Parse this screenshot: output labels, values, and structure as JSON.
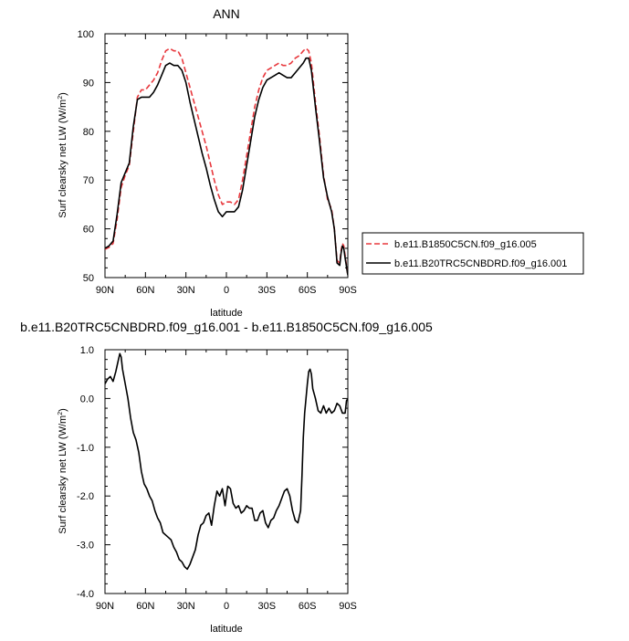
{
  "chart_data": [
    {
      "type": "line",
      "title": "ANN",
      "xlabel": "latitude",
      "ylabel_main": "Surf clearsky net LW (W/m",
      "ylabel_sup": "2",
      "ylabel_close": ")",
      "xlim": [
        90,
        -90
      ],
      "ylim": [
        50,
        100
      ],
      "xticks": [
        90,
        60,
        30,
        0,
        -30,
        -60,
        -90
      ],
      "xticklabels": [
        "90N",
        "60N",
        "30N",
        "0",
        "30S",
        "60S",
        "90S"
      ],
      "yticks": [
        50,
        60,
        70,
        80,
        90,
        100
      ],
      "yticklabels": [
        "50",
        "60",
        "70",
        "80",
        "90",
        "100"
      ],
      "legend": "right",
      "series": [
        {
          "name": "b.e11.B1850C5CN.f09_g16.005",
          "color": "#e8383d",
          "dash": "dashed",
          "points": [
            [
              90,
              55.8
            ],
            [
              87,
              56.2
            ],
            [
              84,
              57
            ],
            [
              81,
              62
            ],
            [
              78,
              68.5
            ],
            [
              75,
              71
            ],
            [
              72,
              73
            ],
            [
              69,
              80
            ],
            [
              66,
              87
            ],
            [
              63,
              88.5
            ],
            [
              60,
              88.5
            ],
            [
              57,
              89.5
            ],
            [
              54,
              90.5
            ],
            [
              51,
              92
            ],
            [
              48,
              94.5
            ],
            [
              45,
              96.5
            ],
            [
              42,
              97
            ],
            [
              39,
              96.5
            ],
            [
              36,
              96.5
            ],
            [
              33,
              95
            ],
            [
              30,
              92
            ],
            [
              27,
              89
            ],
            [
              24,
              86
            ],
            [
              21,
              83
            ],
            [
              18,
              80
            ],
            [
              15,
              77
            ],
            [
              12,
              73.5
            ],
            [
              9,
              70
            ],
            [
              6,
              67
            ],
            [
              3,
              65
            ],
            [
              0,
              65.5
            ],
            [
              -3,
              65.5
            ],
            [
              -6,
              65
            ],
            [
              -9,
              66
            ],
            [
              -12,
              70
            ],
            [
              -15,
              75
            ],
            [
              -18,
              80
            ],
            [
              -21,
              85
            ],
            [
              -24,
              88.5
            ],
            [
              -27,
              91
            ],
            [
              -30,
              92.5
            ],
            [
              -33,
              93
            ],
            [
              -36,
              93.5
            ],
            [
              -39,
              94
            ],
            [
              -42,
              93.5
            ],
            [
              -45,
              93.5
            ],
            [
              -48,
              94
            ],
            [
              -51,
              95
            ],
            [
              -54,
              95.5
            ],
            [
              -57,
              96.5
            ],
            [
              -59,
              97
            ],
            [
              -61,
              96.5
            ],
            [
              -63,
              94
            ],
            [
              -66,
              86
            ],
            [
              -69,
              79
            ],
            [
              -72,
              71
            ],
            [
              -75,
              66
            ],
            [
              -78,
              64
            ],
            [
              -80,
              60
            ],
            [
              -82,
              53.5
            ],
            [
              -84,
              53
            ],
            [
              -85,
              55.5
            ],
            [
              -86,
              57
            ],
            [
              -87,
              56.5
            ],
            [
              -88,
              54.5
            ],
            [
              -90,
              50.5
            ]
          ]
        },
        {
          "name": "b.e11.B20TRC5CNBDRD.f09_g16.001",
          "color": "#000000",
          "dash": "solid",
          "points": [
            [
              90,
              56
            ],
            [
              87,
              56.5
            ],
            [
              84,
              57.5
            ],
            [
              81,
              63
            ],
            [
              78,
              69.5
            ],
            [
              75,
              71.5
            ],
            [
              72,
              73.5
            ],
            [
              69,
              81
            ],
            [
              66,
              86.5
            ],
            [
              63,
              87
            ],
            [
              60,
              87
            ],
            [
              57,
              87
            ],
            [
              54,
              88
            ],
            [
              51,
              89.5
            ],
            [
              48,
              91.5
            ],
            [
              45,
              93.5
            ],
            [
              42,
              94
            ],
            [
              39,
              93.5
            ],
            [
              36,
              93.5
            ],
            [
              33,
              92.5
            ],
            [
              30,
              90
            ],
            [
              27,
              86
            ],
            [
              24,
              82.5
            ],
            [
              21,
              79
            ],
            [
              18,
              75.5
            ],
            [
              15,
              72.5
            ],
            [
              12,
              69
            ],
            [
              9,
              66
            ],
            [
              6,
              63.5
            ],
            [
              3,
              62.5
            ],
            [
              0,
              63.5
            ],
            [
              -3,
              63.5
            ],
            [
              -6,
              63.5
            ],
            [
              -9,
              64.5
            ],
            [
              -12,
              68
            ],
            [
              -15,
              73
            ],
            [
              -18,
              78
            ],
            [
              -21,
              83
            ],
            [
              -24,
              86.5
            ],
            [
              -27,
              89
            ],
            [
              -30,
              90.5
            ],
            [
              -33,
              91
            ],
            [
              -36,
              91.5
            ],
            [
              -39,
              92
            ],
            [
              -42,
              91.5
            ],
            [
              -45,
              91
            ],
            [
              -48,
              91
            ],
            [
              -51,
              92
            ],
            [
              -54,
              93
            ],
            [
              -57,
              94
            ],
            [
              -59,
              95
            ],
            [
              -61,
              95
            ],
            [
              -63,
              92.5
            ],
            [
              -66,
              85
            ],
            [
              -69,
              78
            ],
            [
              -72,
              70.5
            ],
            [
              -75,
              66.5
            ],
            [
              -78,
              63.5
            ],
            [
              -80,
              60
            ],
            [
              -82,
              53
            ],
            [
              -84,
              52.5
            ],
            [
              -85,
              55
            ],
            [
              -86,
              56.5
            ],
            [
              -87,
              56
            ],
            [
              -88,
              54
            ],
            [
              -90,
              50.5
            ]
          ]
        }
      ]
    },
    {
      "type": "line",
      "title": "b.e11.B20TRC5CNBDRD.f09_g16.001 - b.e11.B1850C5CN.f09_g16.005",
      "xlabel": "latitude",
      "ylabel_main": "Surf clearsky net LW (W/m",
      "ylabel_sup": "2",
      "ylabel_close": ")",
      "xlim": [
        90,
        -90
      ],
      "ylim": [
        -4.0,
        1.0
      ],
      "xticks": [
        90,
        60,
        30,
        0,
        -30,
        -60,
        -90
      ],
      "xticklabels": [
        "90N",
        "60N",
        "30N",
        "0",
        "30S",
        "60S",
        "90S"
      ],
      "yticks": [
        -4.0,
        -3.0,
        -2.0,
        -1.0,
        0.0,
        1.0
      ],
      "yticklabels": [
        "-4.0",
        "-3.0",
        "-2.0",
        "-1.0",
        "0.0",
        "1.0"
      ],
      "series": [
        {
          "color": "#000000",
          "dash": "solid",
          "points": [
            [
              90,
              0.3
            ],
            [
              88,
              0.4
            ],
            [
              86,
              0.45
            ],
            [
              84,
              0.35
            ],
            [
              82,
              0.55
            ],
            [
              80,
              0.8
            ],
            [
              79,
              0.92
            ],
            [
              78,
              0.85
            ],
            [
              77,
              0.6
            ],
            [
              75,
              0.3
            ],
            [
              73,
              0.0
            ],
            [
              71,
              -0.4
            ],
            [
              69,
              -0.7
            ],
            [
              67,
              -0.85
            ],
            [
              65,
              -1.1
            ],
            [
              63,
              -1.5
            ],
            [
              61,
              -1.75
            ],
            [
              59,
              -1.85
            ],
            [
              57,
              -2.0
            ],
            [
              55,
              -2.1
            ],
            [
              53,
              -2.3
            ],
            [
              51,
              -2.45
            ],
            [
              49,
              -2.55
            ],
            [
              47,
              -2.75
            ],
            [
              45,
              -2.8
            ],
            [
              43,
              -2.85
            ],
            [
              41,
              -2.9
            ],
            [
              39,
              -3.05
            ],
            [
              37,
              -3.15
            ],
            [
              35,
              -3.3
            ],
            [
              33,
              -3.35
            ],
            [
              31,
              -3.45
            ],
            [
              29,
              -3.5
            ],
            [
              27,
              -3.4
            ],
            [
              25,
              -3.25
            ],
            [
              23,
              -3.1
            ],
            [
              21,
              -2.8
            ],
            [
              19,
              -2.6
            ],
            [
              17,
              -2.55
            ],
            [
              15,
              -2.4
            ],
            [
              13,
              -2.35
            ],
            [
              11,
              -2.6
            ],
            [
              9,
              -2.2
            ],
            [
              7,
              -1.9
            ],
            [
              5,
              -2.0
            ],
            [
              3,
              -1.85
            ],
            [
              1,
              -2.2
            ],
            [
              -1,
              -1.8
            ],
            [
              -3,
              -1.85
            ],
            [
              -5,
              -2.15
            ],
            [
              -7,
              -2.25
            ],
            [
              -9,
              -2.2
            ],
            [
              -11,
              -2.35
            ],
            [
              -13,
              -2.3
            ],
            [
              -15,
              -2.2
            ],
            [
              -17,
              -2.25
            ],
            [
              -19,
              -2.25
            ],
            [
              -21,
              -2.5
            ],
            [
              -23,
              -2.5
            ],
            [
              -25,
              -2.35
            ],
            [
              -27,
              -2.3
            ],
            [
              -29,
              -2.55
            ],
            [
              -31,
              -2.65
            ],
            [
              -33,
              -2.5
            ],
            [
              -35,
              -2.45
            ],
            [
              -37,
              -2.3
            ],
            [
              -39,
              -2.2
            ],
            [
              -41,
              -2.05
            ],
            [
              -43,
              -1.9
            ],
            [
              -45,
              -1.85
            ],
            [
              -47,
              -2.0
            ],
            [
              -49,
              -2.3
            ],
            [
              -51,
              -2.5
            ],
            [
              -53,
              -2.55
            ],
            [
              -55,
              -2.3
            ],
            [
              -56,
              -1.6
            ],
            [
              -57,
              -0.8
            ],
            [
              -58,
              -0.3
            ],
            [
              -59,
              0.0
            ],
            [
              -60,
              0.3
            ],
            [
              -61,
              0.55
            ],
            [
              -62,
              0.6
            ],
            [
              -63,
              0.5
            ],
            [
              -64,
              0.2
            ],
            [
              -66,
              0.0
            ],
            [
              -68,
              -0.25
            ],
            [
              -70,
              -0.3
            ],
            [
              -72,
              -0.15
            ],
            [
              -74,
              -0.3
            ],
            [
              -76,
              -0.2
            ],
            [
              -78,
              -0.3
            ],
            [
              -80,
              -0.25
            ],
            [
              -82,
              -0.1
            ],
            [
              -84,
              -0.15
            ],
            [
              -86,
              -0.3
            ],
            [
              -88,
              -0.3
            ],
            [
              -89,
              -0.05
            ],
            [
              -90,
              0.0
            ]
          ]
        }
      ]
    }
  ]
}
